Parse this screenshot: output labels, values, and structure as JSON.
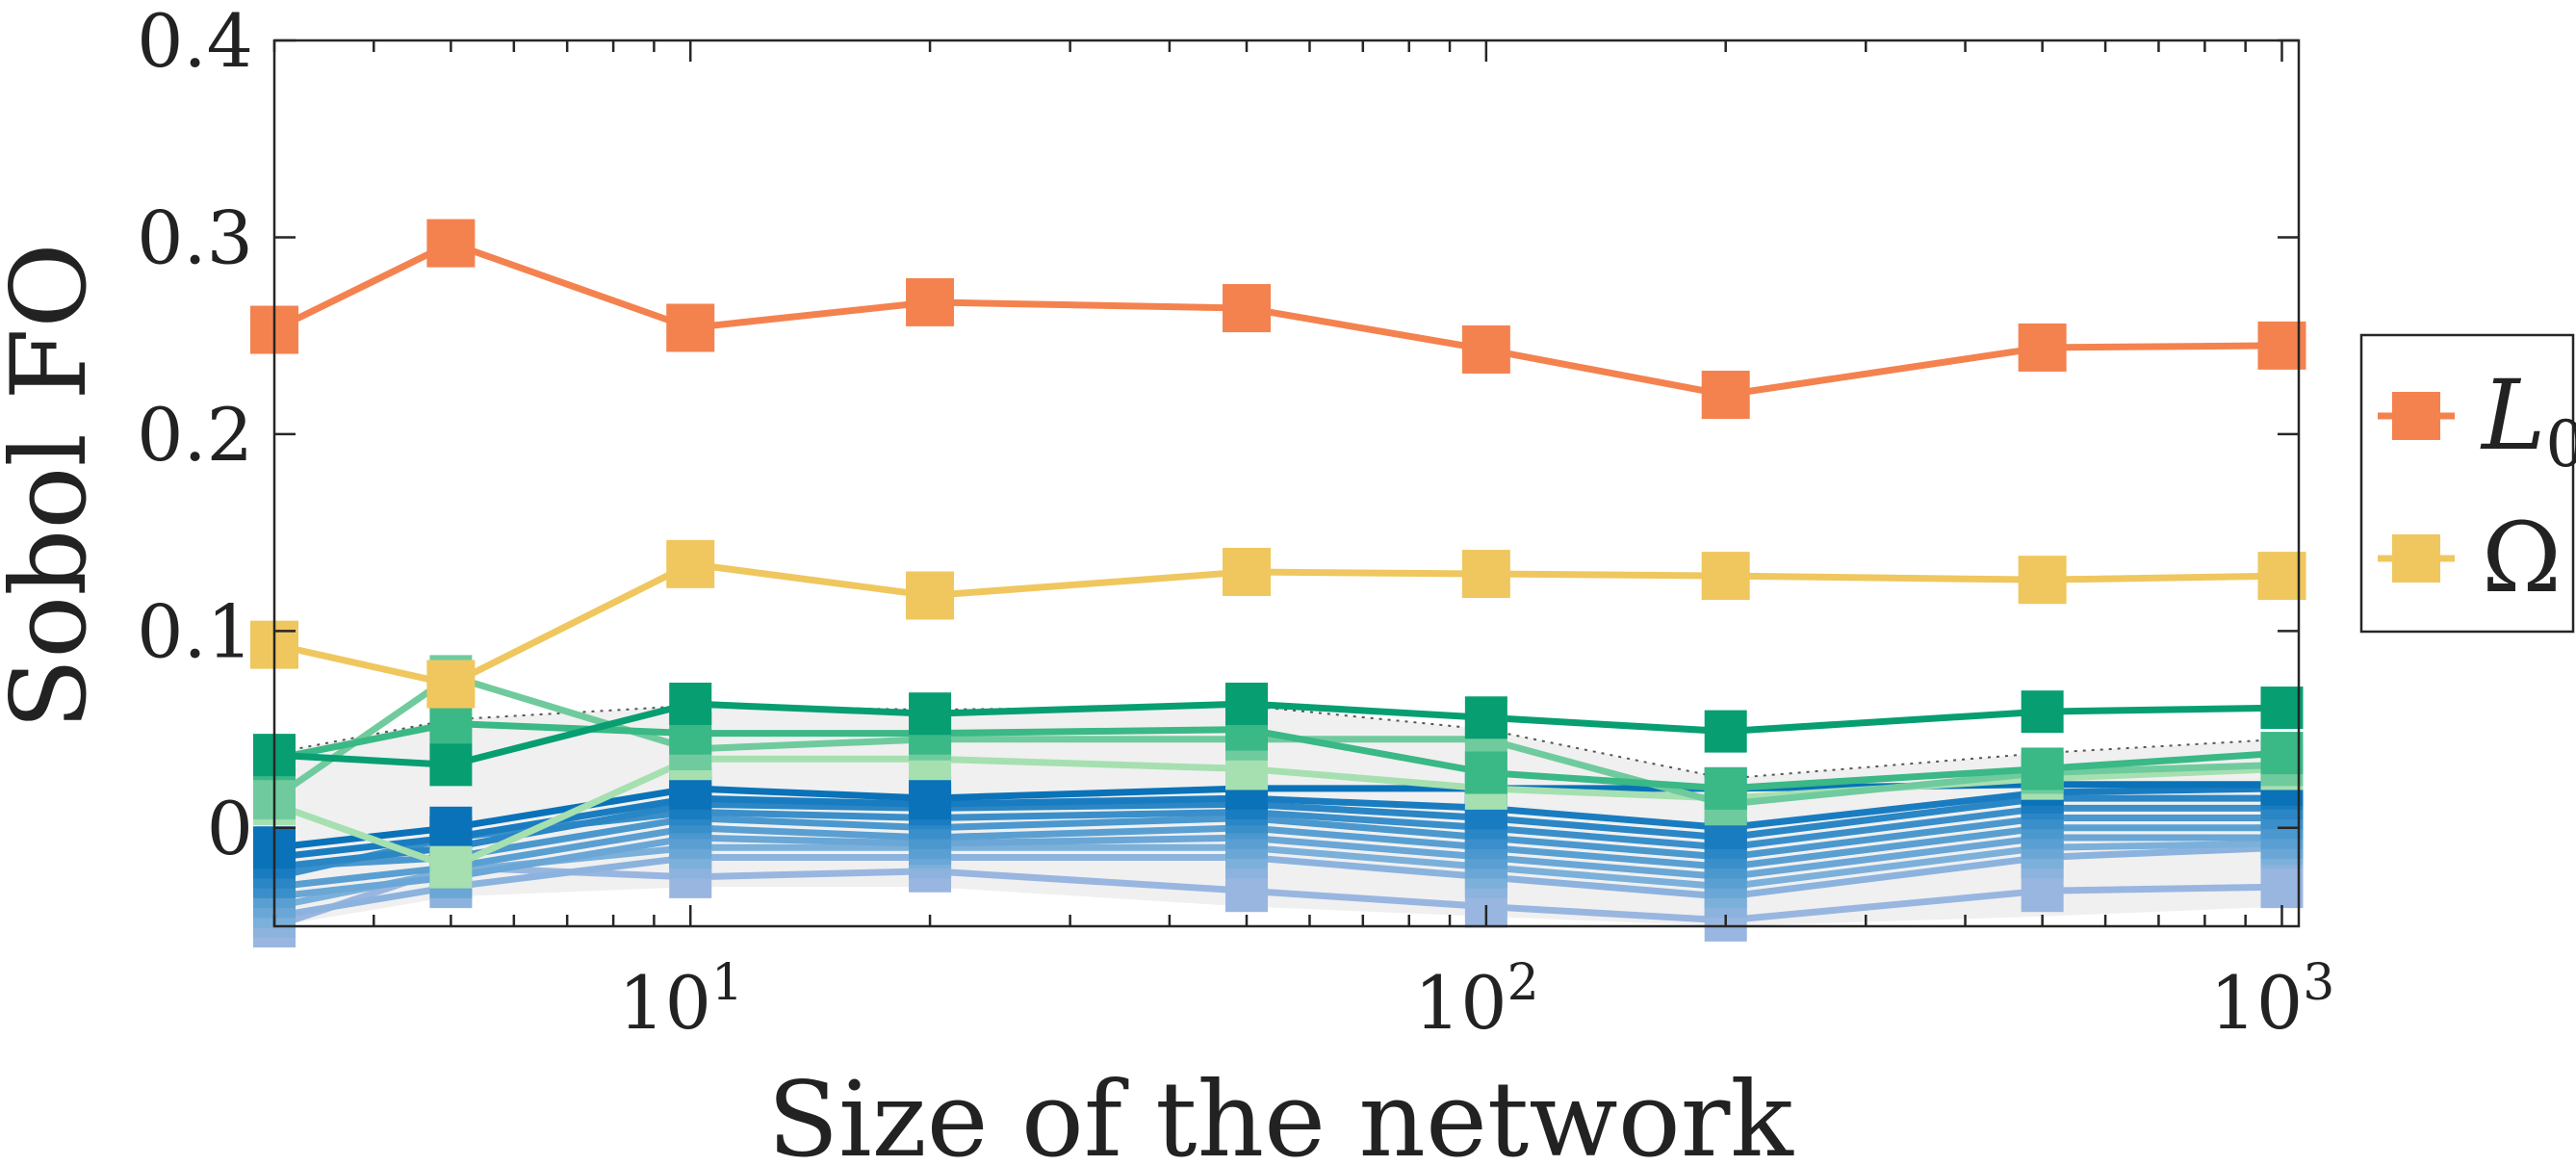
{
  "chart_data": {
    "type": "line",
    "title": "",
    "xlabel": "Size of the network",
    "ylabel": "Sobol FO",
    "x_scale": "log",
    "xlim": [
      3,
      1050
    ],
    "ylim": [
      -0.05,
      0.4
    ],
    "x": [
      3,
      5,
      10,
      20,
      50,
      100,
      200,
      500,
      1000
    ],
    "x_ticks": [
      {
        "value": 10,
        "base": "10",
        "exp": "1"
      },
      {
        "value": 100,
        "base": "10",
        "exp": "2"
      },
      {
        "value": 1000,
        "base": "10",
        "exp": "3"
      }
    ],
    "y_ticks": [
      {
        "value": 0,
        "label": "0"
      },
      {
        "value": 0.1,
        "label": "0.1"
      },
      {
        "value": 0.2,
        "label": "0.2"
      },
      {
        "value": 0.3,
        "label": "0.3"
      },
      {
        "value": 0.4,
        "label": "0.4"
      }
    ],
    "grid": false,
    "legend_position": "outside-right",
    "confidence_band": {
      "color": "#f0f0f0",
      "upper": [
        0.038,
        0.055,
        0.062,
        0.06,
        0.062,
        0.05,
        0.025,
        0.038,
        0.045
      ],
      "lower": [
        -0.05,
        -0.035,
        -0.03,
        -0.03,
        -0.04,
        -0.045,
        -0.05,
        -0.045,
        -0.04
      ]
    },
    "series": [
      {
        "name": "L",
        "subscript": "0",
        "color": "#f4824f",
        "values": [
          0.253,
          0.297,
          0.254,
          0.267,
          0.264,
          0.243,
          0.22,
          0.244,
          0.245
        ]
      },
      {
        "name": "Ω",
        "color": "#efc75e",
        "values": [
          0.093,
          0.073,
          0.134,
          0.118,
          0.13,
          0.129,
          0.128,
          0.126,
          0.128
        ]
      },
      {
        "color": "#079e72",
        "values": [
          0.037,
          0.032,
          0.063,
          0.058,
          0.063,
          0.056,
          0.049,
          0.059,
          0.061
        ]
      },
      {
        "color": "#3ab886",
        "values": [
          0.035,
          0.053,
          0.048,
          0.048,
          0.05,
          0.028,
          0.02,
          0.03,
          0.038
        ]
      },
      {
        "color": "#6fcb9d",
        "values": [
          0.015,
          0.077,
          0.04,
          0.045,
          0.045,
          0.045,
          0.012,
          0.028,
          0.032
        ]
      },
      {
        "color": "#a6e0b0",
        "values": [
          0.012,
          -0.02,
          0.035,
          0.035,
          0.03,
          0.02,
          0.015,
          0.025,
          0.03
        ]
      },
      {
        "color": "#0a72b8",
        "values": [
          -0.01,
          0.0,
          0.02,
          0.015,
          0.02,
          0.02,
          0.02,
          0.022,
          0.022
        ]
      },
      {
        "color": "#1a7cc0",
        "values": [
          -0.015,
          -0.005,
          0.015,
          0.012,
          0.015,
          0.01,
          0.0,
          0.018,
          0.02
        ]
      },
      {
        "color": "#2a86c5",
        "values": [
          -0.02,
          -0.01,
          0.012,
          0.01,
          0.012,
          0.005,
          -0.005,
          0.015,
          0.015
        ]
      },
      {
        "color": "#3a8fca",
        "values": [
          -0.025,
          -0.005,
          0.008,
          0.005,
          0.008,
          0.0,
          -0.01,
          0.01,
          0.01
        ]
      },
      {
        "color": "#4b98ce",
        "values": [
          -0.02,
          -0.015,
          0.005,
          0.0,
          0.005,
          -0.005,
          -0.015,
          0.005,
          0.005
        ]
      },
      {
        "color": "#5a9fd2",
        "values": [
          -0.03,
          -0.02,
          0.0,
          -0.005,
          0.0,
          -0.01,
          -0.02,
          0.0,
          0.0
        ]
      },
      {
        "color": "#6aa6d6",
        "values": [
          -0.035,
          -0.025,
          -0.005,
          -0.008,
          -0.005,
          -0.015,
          -0.025,
          -0.005,
          -0.005
        ]
      },
      {
        "color": "#7bb0da",
        "values": [
          -0.04,
          -0.022,
          -0.01,
          -0.01,
          -0.01,
          -0.02,
          -0.03,
          -0.01,
          -0.008
        ]
      },
      {
        "color": "#8cb3de",
        "values": [
          -0.045,
          -0.03,
          -0.015,
          -0.015,
          -0.015,
          -0.025,
          -0.035,
          -0.015,
          -0.01
        ]
      },
      {
        "color": "#99b6e0",
        "values": [
          -0.05,
          -0.02,
          -0.025,
          -0.022,
          -0.032,
          -0.04,
          -0.047,
          -0.032,
          -0.03
        ]
      }
    ]
  }
}
